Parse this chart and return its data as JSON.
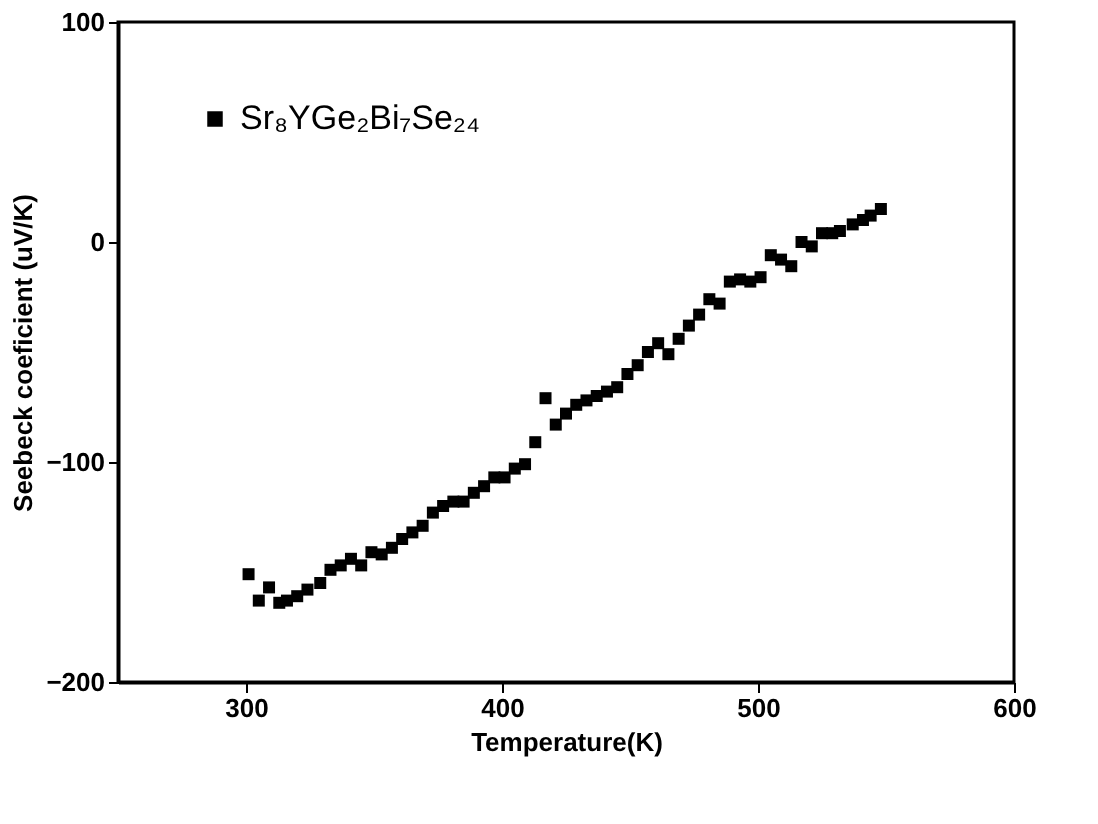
{
  "chart_data": {
    "type": "scatter",
    "xlabel": "Temperature(K)",
    "ylabel": "Seebeck coeficient (uV/K)",
    "xlim": [
      250,
      600
    ],
    "ylim": [
      -200,
      100
    ],
    "xticks": [
      300,
      400,
      500,
      600
    ],
    "yticks": [
      -200,
      -100,
      0,
      100
    ],
    "grid": false,
    "legend": "top left",
    "marker": "square",
    "series": [
      {
        "name": "Sr₈YGe₂Bi₇Se₂₄",
        "color": "#000000",
        "x": [
          301,
          305,
          309,
          313,
          316,
          320,
          324,
          329,
          333,
          337,
          341,
          345,
          349,
          353,
          357,
          361,
          365,
          369,
          373,
          377,
          381,
          385,
          389,
          393,
          397,
          401,
          405,
          409,
          413,
          417,
          421,
          425,
          429,
          433,
          437,
          441,
          445,
          449,
          453,
          457,
          461,
          465,
          469,
          473,
          477,
          481,
          485,
          489,
          493,
          497,
          501,
          505,
          509,
          513,
          517,
          521,
          525,
          529,
          532,
          537,
          541,
          544,
          548
        ],
        "values": [
          -151,
          -163,
          -157,
          -164,
          -163,
          -161,
          -158,
          -155,
          -149,
          -147,
          -144,
          -147,
          -141,
          -142,
          -139,
          -135,
          -132,
          -129,
          -123,
          -120,
          -118,
          -118,
          -114,
          -111,
          -107,
          -107,
          -103,
          -101,
          -91,
          -71,
          -83,
          -78,
          -74,
          -72,
          -70,
          -68,
          -66,
          -60,
          -56,
          -50,
          -46,
          -51,
          -44,
          -38,
          -33,
          -26,
          -28,
          -18,
          -17,
          -18,
          -16,
          -6,
          -8,
          -11,
          0,
          -2,
          4,
          4,
          5,
          8,
          10,
          12,
          15
        ]
      }
    ]
  }
}
